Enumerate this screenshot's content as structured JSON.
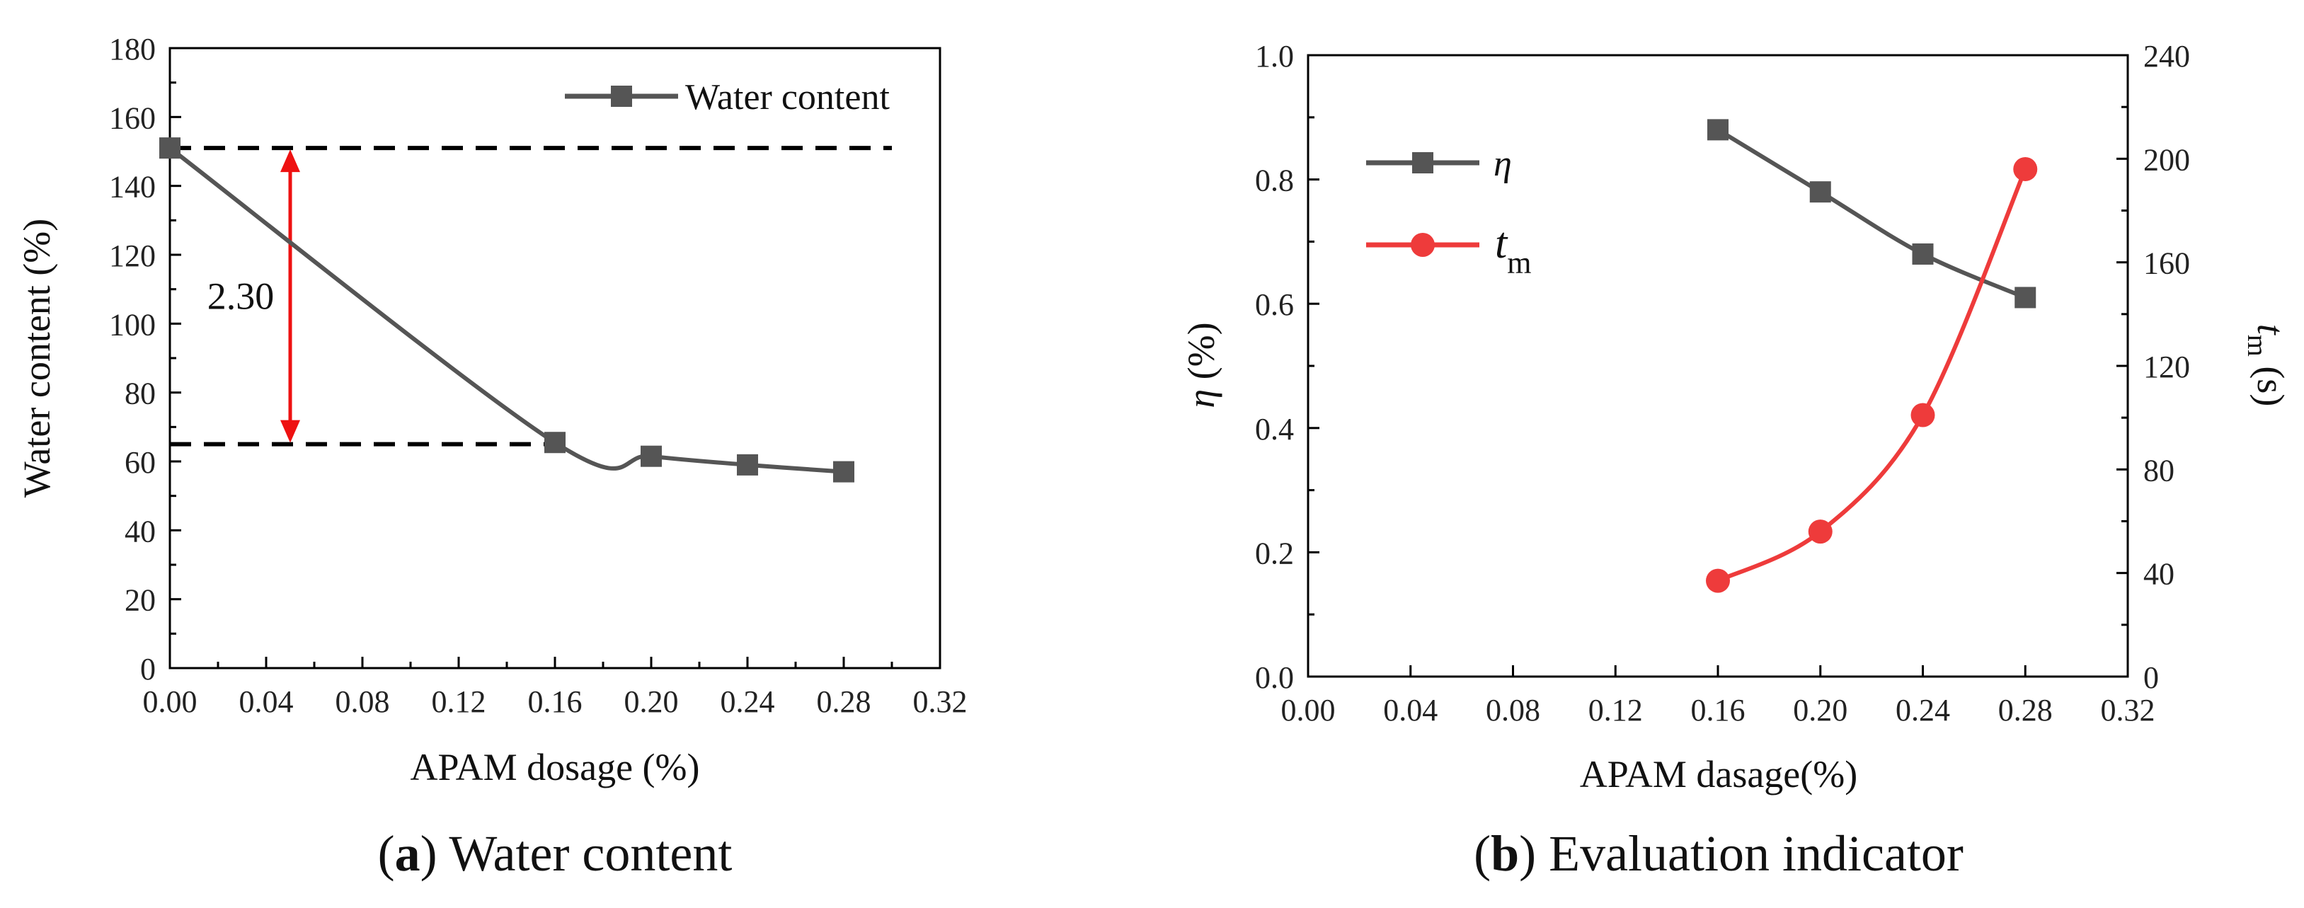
{
  "chart_data": [
    {
      "id": "a",
      "type": "line",
      "caption_letter": "a",
      "caption_text": "Water content",
      "xlabel": "APAM dosage (%)",
      "ylabel": "Water content (%)",
      "xlim": [
        0,
        0.32
      ],
      "ylim": [
        0,
        180
      ],
      "xticks": [
        "0.00",
        "0.04",
        "0.08",
        "0.12",
        "0.16",
        "0.20",
        "0.24",
        "0.28",
        "0.32"
      ],
      "yticks": [
        "0",
        "20",
        "40",
        "60",
        "80",
        "100",
        "120",
        "140",
        "160",
        "180"
      ],
      "series": [
        {
          "name": "Water content",
          "color": "#555555",
          "marker": "square",
          "x": [
            0.0,
            0.16,
            0.2,
            0.24,
            0.28
          ],
          "y": [
            151,
            65.5,
            61.5,
            59,
            57
          ]
        }
      ],
      "annotations": {
        "upper_dashed_y": 151,
        "lower_dashed_y": 65,
        "arrow_x": 0.05,
        "arrow_label": "2.30",
        "arrow_color": "#ee1111"
      }
    },
    {
      "id": "b",
      "type": "line",
      "caption_letter": "b",
      "caption_text": "Evaluation indicator",
      "xlabel": "APAM dasage(%)",
      "ylabel_left": "η (%)",
      "ylabel_right": "t_m (s)",
      "xlim": [
        0,
        0.32
      ],
      "ylim_left": [
        0,
        1.0
      ],
      "ylim_right": [
        0,
        240
      ],
      "xticks": [
        "0.00",
        "0.04",
        "0.08",
        "0.12",
        "0.16",
        "0.20",
        "0.24",
        "0.28",
        "0.32"
      ],
      "yticks_left": [
        "0.0",
        "0.2",
        "0.4",
        "0.6",
        "0.8",
        "1.0"
      ],
      "yticks_right": [
        "0",
        "40",
        "80",
        "120",
        "160",
        "200",
        "240"
      ],
      "series": [
        {
          "name": "η",
          "axis": "left",
          "color": "#555555",
          "marker": "square",
          "x": [
            0.16,
            0.2,
            0.24,
            0.28
          ],
          "y": [
            0.88,
            0.78,
            0.68,
            0.61
          ]
        },
        {
          "name": "t",
          "name_sub": "m",
          "axis": "right",
          "color": "#ee3b3b",
          "marker": "circle",
          "x": [
            0.16,
            0.2,
            0.24,
            0.28
          ],
          "y": [
            37,
            56,
            101,
            196
          ]
        }
      ]
    }
  ]
}
